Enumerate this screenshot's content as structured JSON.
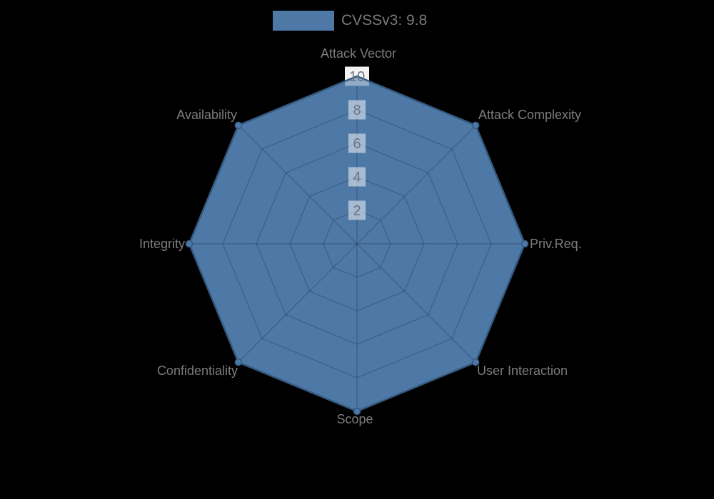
{
  "page": {
    "background": "#000000"
  },
  "legend": {
    "label": "CVSSv3: 9.8",
    "swatch_color": "#4e79a7"
  },
  "chart_data": {
    "type": "radar",
    "title": "",
    "legend_position": "top",
    "categories": [
      "Attack Vector",
      "Attack Complexity",
      "Priv.Req.",
      "User Interaction",
      "Scope",
      "Confidentiality",
      "Integrity",
      "Availability"
    ],
    "series": [
      {
        "name": "CVSSv3: 9.8",
        "values": [
          10,
          10,
          10,
          10,
          10,
          10,
          10,
          10
        ],
        "fill_color": "#4e79a7",
        "border_color": "#35597f"
      }
    ],
    "scale": {
      "min": 0,
      "max": 10,
      "step": 2,
      "tick_labels": [
        "2",
        "4",
        "6",
        "8",
        "10"
      ],
      "tick_backdrop_color": "rgba(255,255,255,0.5)",
      "grid_color": "rgba(0,0,0,0.22)"
    },
    "grid": true
  }
}
